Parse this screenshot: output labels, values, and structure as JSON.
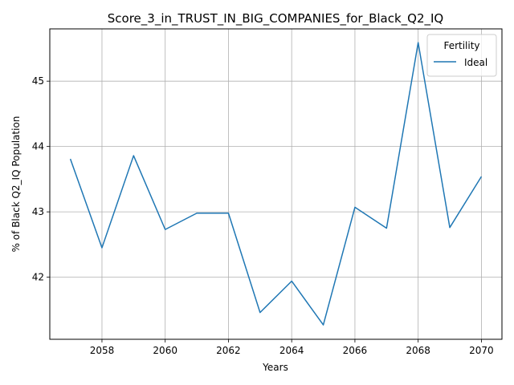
{
  "chart_data": {
    "type": "line",
    "title": "Score_3_in_TRUST_IN_BIG_COMPANIES_for_Black_Q2_IQ",
    "xlabel": "Years",
    "ylabel": "% of Black Q2_IQ Population",
    "x": [
      2057,
      2058,
      2059,
      2060,
      2061,
      2062,
      2063,
      2064,
      2065,
      2066,
      2067,
      2068,
      2069,
      2070
    ],
    "series": [
      {
        "name": "Ideal",
        "color": "#1f77b4",
        "values": [
          43.81,
          42.45,
          43.86,
          42.73,
          42.98,
          42.98,
          41.46,
          41.94,
          41.27,
          43.07,
          42.75,
          45.59,
          42.76,
          43.54
        ]
      }
    ],
    "xlim": [
      2056.35,
      2070.65
    ],
    "ylim": [
      41.05,
      45.8
    ],
    "xticks": [
      2058,
      2060,
      2062,
      2064,
      2066,
      2068,
      2070
    ],
    "yticks": [
      42,
      43,
      44,
      45
    ],
    "grid": true,
    "legend": {
      "title": "Fertility",
      "position": "top-right"
    }
  }
}
